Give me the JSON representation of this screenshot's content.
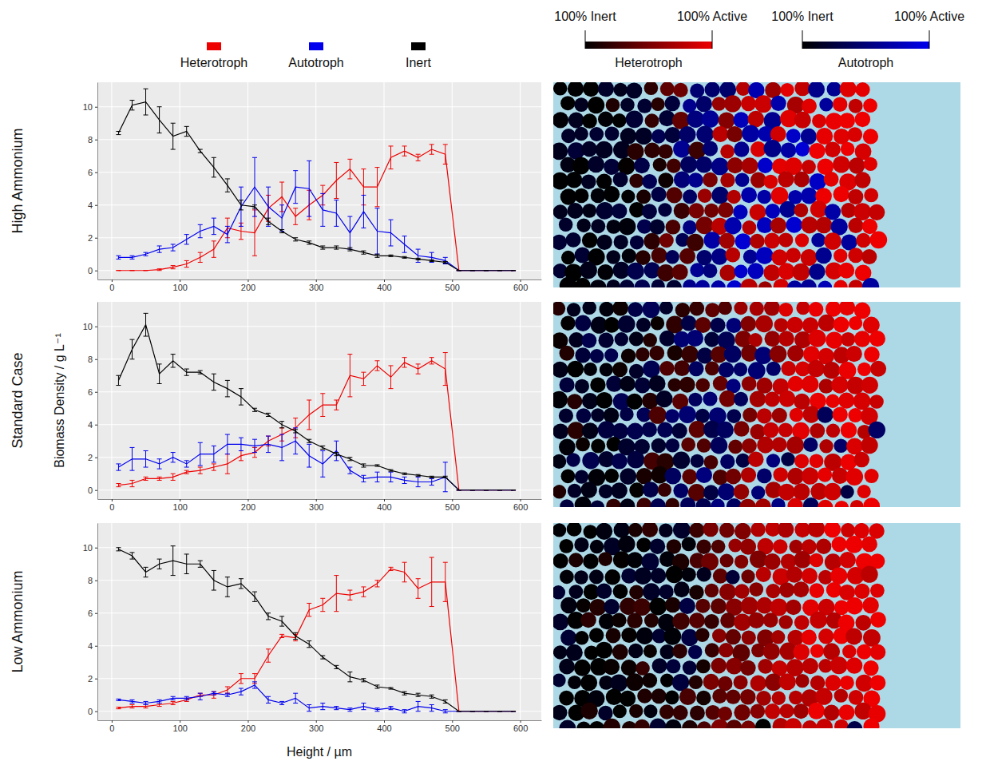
{
  "chart_data": [
    {
      "type": "line",
      "title": "High Ammonium",
      "legend": "top",
      "grid": true,
      "x": [
        10,
        30,
        50,
        70,
        90,
        110,
        130,
        150,
        170,
        190,
        210,
        230,
        250,
        270,
        290,
        310,
        330,
        350,
        370,
        390,
        410,
        430,
        450,
        470,
        490,
        510,
        530,
        550,
        570,
        590
      ],
      "xlim": [
        -21,
        631
      ],
      "ylim": [
        -0.55,
        11.5
      ],
      "xticks": [
        0,
        100,
        200,
        300,
        400,
        500,
        600
      ],
      "yticks": [
        0,
        2,
        4,
        6,
        8,
        10
      ],
      "series": [
        {
          "name": "Heterotroph",
          "color": "#ee0000",
          "values": [
            0,
            0,
            0,
            0.05,
            0.2,
            0.4,
            0.8,
            1.3,
            2.6,
            2.4,
            2.3,
            3.8,
            4.5,
            3.3,
            4.0,
            4.6,
            5.5,
            6.2,
            5.1,
            5.1,
            6.9,
            7.3,
            6.9,
            7.4,
            7.1,
            0,
            0,
            0,
            0,
            0
          ],
          "errors": [
            0,
            0,
            0,
            0.05,
            0.1,
            0.2,
            0.3,
            0.5,
            0.6,
            0.5,
            1.4,
            0.8,
            0.9,
            0.5,
            0.9,
            0.6,
            1.1,
            0.6,
            1.1,
            1.2,
            0.7,
            0.3,
            0.2,
            0.3,
            0.6,
            0,
            0,
            0,
            0,
            0
          ]
        },
        {
          "name": "Autotroph",
          "color": "#0000ee",
          "values": [
            0.8,
            0.8,
            1.0,
            1.3,
            1.4,
            1.9,
            2.4,
            2.7,
            2.2,
            3.9,
            5.1,
            3.9,
            3.2,
            5.1,
            5.0,
            3.7,
            3.5,
            2.3,
            3.6,
            2.4,
            2.3,
            1.6,
            0.9,
            0.8,
            0.6,
            0,
            0,
            0,
            0,
            0
          ],
          "errors": [
            0.1,
            0.1,
            0.1,
            0.2,
            0.2,
            0.3,
            0.4,
            0.5,
            0.5,
            1.2,
            1.8,
            1.2,
            0.8,
            1.0,
            1.7,
            1.0,
            0.8,
            1.0,
            1.0,
            1.4,
            0.8,
            0.5,
            0.4,
            0.3,
            0.2,
            0,
            0,
            0,
            0,
            0
          ]
        },
        {
          "name": "Inert",
          "color": "#000000",
          "values": [
            8.4,
            10.1,
            10.3,
            9.2,
            8.2,
            8.5,
            7.3,
            6.3,
            5.2,
            4.0,
            3.9,
            3.0,
            2.4,
            1.9,
            1.7,
            1.4,
            1.4,
            1.3,
            1.1,
            0.9,
            0.9,
            0.8,
            0.7,
            0.6,
            0.5,
            0,
            0,
            0,
            0,
            0
          ],
          "errors": [
            0.1,
            0.3,
            0.8,
            0.8,
            0.8,
            0.3,
            0.1,
            0.6,
            0.4,
            0.3,
            0.1,
            0.2,
            0.1,
            0.1,
            0.1,
            0.1,
            0.1,
            0.1,
            0.1,
            0.1,
            0.05,
            0.05,
            0.05,
            0.05,
            0.05,
            0,
            0,
            0,
            0,
            0
          ]
        }
      ]
    },
    {
      "type": "line",
      "title": "Standard Case",
      "ylabel": "Biomass Density / g L⁻¹",
      "grid": true,
      "x": [
        10,
        30,
        50,
        70,
        90,
        110,
        130,
        150,
        170,
        190,
        210,
        230,
        250,
        270,
        290,
        310,
        330,
        350,
        370,
        390,
        410,
        430,
        450,
        470,
        490,
        510,
        530,
        550,
        570,
        590
      ],
      "xlim": [
        -21,
        631
      ],
      "ylim": [
        -0.55,
        11.5
      ],
      "xticks": [
        0,
        100,
        200,
        300,
        400,
        500,
        600
      ],
      "yticks": [
        0,
        2,
        4,
        6,
        8,
        10
      ],
      "series": [
        {
          "name": "Heterotroph",
          "color": "#ee0000",
          "values": [
            0.3,
            0.4,
            0.7,
            0.7,
            0.8,
            1.1,
            1.2,
            1.4,
            1.6,
            2.1,
            2.3,
            3.0,
            3.4,
            3.8,
            4.6,
            5.2,
            5.2,
            7.0,
            6.8,
            7.6,
            6.9,
            7.8,
            7.4,
            7.9,
            7.4,
            0,
            0,
            0,
            0,
            0
          ],
          "errors": [
            0.1,
            0.2,
            0.1,
            0.1,
            0.2,
            0.1,
            0.2,
            0.2,
            0.6,
            0.3,
            0.3,
            0.3,
            0.4,
            0.6,
            0.9,
            0.7,
            0.3,
            1.3,
            0.4,
            0.3,
            0.7,
            0.3,
            0.3,
            0.2,
            1.0,
            0,
            0,
            0,
            0,
            0
          ]
        },
        {
          "name": "Autotroph",
          "color": "#0000ee",
          "values": [
            1.4,
            1.9,
            1.9,
            1.6,
            2.0,
            1.6,
            2.2,
            2.2,
            2.8,
            2.8,
            2.7,
            2.8,
            2.6,
            3.0,
            2.1,
            1.6,
            2.4,
            1.2,
            0.7,
            0.8,
            0.8,
            0.6,
            0.5,
            0.5,
            0.8,
            0,
            0,
            0,
            0,
            0
          ],
          "errors": [
            0.2,
            0.7,
            0.5,
            0.3,
            0.3,
            0.2,
            0.7,
            0.5,
            0.6,
            0.4,
            0.4,
            0.5,
            0.8,
            0.8,
            0.7,
            0.8,
            0.6,
            0.2,
            0.2,
            0.3,
            0.3,
            0.2,
            0.3,
            0.2,
            0.9,
            0,
            0,
            0,
            0,
            0
          ]
        },
        {
          "name": "Inert",
          "color": "#000000",
          "values": [
            6.7,
            8.6,
            10.1,
            7.1,
            7.9,
            7.2,
            7.2,
            6.6,
            6.2,
            5.7,
            4.9,
            4.6,
            4.0,
            3.6,
            3.0,
            2.6,
            2.2,
            1.9,
            1.5,
            1.5,
            1.2,
            1.0,
            0.9,
            0.8,
            0.8,
            0,
            0,
            0,
            0,
            0
          ],
          "errors": [
            0.3,
            0.6,
            0.7,
            0.6,
            0.4,
            0.2,
            0.1,
            0.5,
            0.5,
            0.5,
            0.1,
            0.1,
            0.2,
            0.1,
            0.1,
            0.1,
            0.1,
            0.1,
            0.1,
            0.05,
            0.05,
            0.05,
            0.05,
            0.05,
            0.05,
            0,
            0,
            0,
            0,
            0
          ]
        }
      ]
    },
    {
      "type": "line",
      "title": "Low Ammonium",
      "xlabel": "Height / µm",
      "grid": true,
      "x": [
        10,
        30,
        50,
        70,
        90,
        110,
        130,
        150,
        170,
        190,
        210,
        230,
        250,
        270,
        290,
        310,
        330,
        350,
        370,
        390,
        410,
        430,
        450,
        470,
        490,
        510,
        530,
        550,
        570,
        590
      ],
      "xlim": [
        -21,
        631
      ],
      "ylim": [
        -0.55,
        11.5
      ],
      "xticks": [
        0,
        100,
        200,
        300,
        400,
        500,
        600
      ],
      "yticks": [
        0,
        2,
        4,
        6,
        8,
        10
      ],
      "series": [
        {
          "name": "Heterotroph",
          "color": "#ee0000",
          "values": [
            0.2,
            0.3,
            0.3,
            0.4,
            0.5,
            0.7,
            1.0,
            1.0,
            1.3,
            2.0,
            2.0,
            3.4,
            4.6,
            4.5,
            6.2,
            6.5,
            7.2,
            7.1,
            7.3,
            7.8,
            8.7,
            8.5,
            7.5,
            7.9,
            7.9,
            0,
            0,
            0,
            0,
            0
          ],
          "errors": [
            0.05,
            0.1,
            0.1,
            0.1,
            0.1,
            0.1,
            0.1,
            0.2,
            0.2,
            0.3,
            0.3,
            0.4,
            0.1,
            0.2,
            0.4,
            0.4,
            1.1,
            0.3,
            0.3,
            0.2,
            0.1,
            0.6,
            0.6,
            1.5,
            1.2,
            0,
            0,
            0,
            0,
            0
          ]
        },
        {
          "name": "Autotroph",
          "color": "#0000ee",
          "values": [
            0.7,
            0.6,
            0.5,
            0.6,
            0.8,
            0.8,
            0.9,
            1.1,
            1.0,
            1.2,
            1.6,
            0.7,
            0.5,
            0.8,
            0.2,
            0.3,
            0.2,
            0.1,
            0.3,
            0.1,
            0.2,
            0.0,
            0.3,
            0.2,
            0.0,
            0,
            0,
            0,
            0,
            0
          ],
          "errors": [
            0.05,
            0.1,
            0.1,
            0.1,
            0.1,
            0.1,
            0.2,
            0.1,
            0.1,
            0.2,
            0.2,
            0.2,
            0.1,
            0.3,
            0.2,
            0.2,
            0.1,
            0.1,
            0.2,
            0.1,
            0.1,
            0.1,
            0.3,
            0.2,
            0.1,
            0,
            0,
            0,
            0,
            0
          ]
        },
        {
          "name": "Inert",
          "color": "#000000",
          "values": [
            9.9,
            9.5,
            8.5,
            9.0,
            9.2,
            9.0,
            9.0,
            8.0,
            7.6,
            7.8,
            7.0,
            5.8,
            5.5,
            4.6,
            4.1,
            3.3,
            2.7,
            2.1,
            1.9,
            1.5,
            1.4,
            1.1,
            1.0,
            0.9,
            0.6,
            0,
            0,
            0,
            0,
            0
          ],
          "errors": [
            0.1,
            0.2,
            0.3,
            0.3,
            0.9,
            0.6,
            0.2,
            0.6,
            0.6,
            0.3,
            0.3,
            0.2,
            0.3,
            0.2,
            0.2,
            0.1,
            0.1,
            0.3,
            0.1,
            0.1,
            0.05,
            0.1,
            0.1,
            0.1,
            0.1,
            0,
            0,
            0,
            0,
            0
          ]
        }
      ]
    }
  ],
  "colorbars": [
    {
      "label": "Heterotroph",
      "low": "100% Inert",
      "high": "100% Active",
      "colors": [
        "#000000",
        "#ee0000"
      ]
    },
    {
      "label": "Autotroph",
      "low": "100% Inert",
      "high": "100% Active",
      "colors": [
        "#000000",
        "#0000ee"
      ]
    }
  ]
}
